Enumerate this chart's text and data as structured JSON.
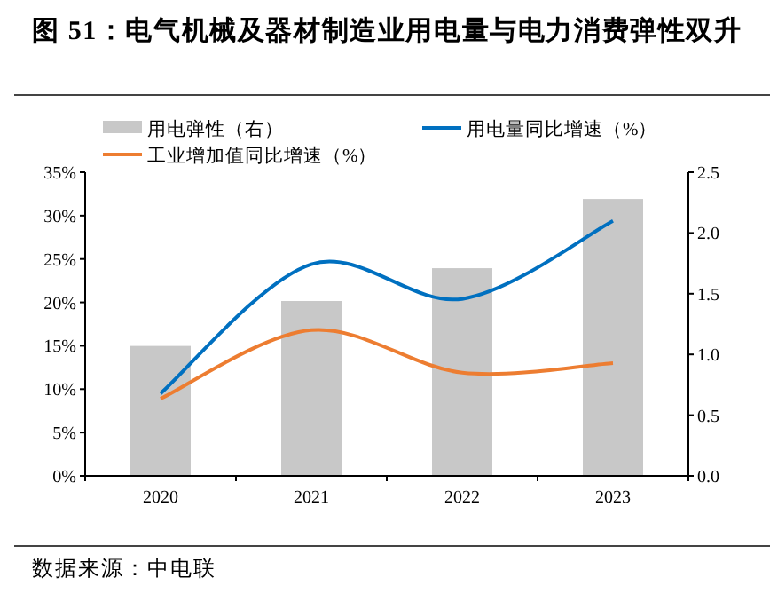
{
  "chart_data": {
    "type": "line",
    "title": "图 51：电气机械及器材制造业用电量与电力消费弹性双升",
    "categories": [
      "2020",
      "2021",
      "2022",
      "2023"
    ],
    "series": [
      {
        "name": "用电弹性（右）",
        "type": "bar",
        "axis": "y2",
        "color": "#c8c8c8",
        "values": [
          1.07,
          1.44,
          1.71,
          2.28
        ]
      },
      {
        "name": "用电量同比增速（%）",
        "color": "#0070c0",
        "values": [
          9.5,
          24.4,
          20.4,
          29.4
        ]
      },
      {
        "name": "工业增加值同比增速（%）",
        "color": "#ed7d31",
        "values": [
          8.9,
          16.8,
          11.9,
          13.0
        ]
      }
    ],
    "ylim": [
      0,
      35
    ],
    "yticks": [
      {
        "value": 0,
        "label": "0%"
      },
      {
        "value": 5,
        "label": "5%"
      },
      {
        "value": 10,
        "label": "10%"
      },
      {
        "value": 15,
        "label": "15%"
      },
      {
        "value": 20,
        "label": "20%"
      },
      {
        "value": 25,
        "label": "25%"
      },
      {
        "value": 30,
        "label": "30%"
      },
      {
        "value": 35,
        "label": "35%"
      }
    ],
    "y2lim": [
      0,
      2.5
    ],
    "y2ticks": [
      {
        "value": 0,
        "label": "0.0"
      },
      {
        "value": 0.5,
        "label": "0.5"
      },
      {
        "value": 1,
        "label": "1.0"
      },
      {
        "value": 1.5,
        "label": "1.5"
      },
      {
        "value": 2,
        "label": "2.0"
      },
      {
        "value": 2.5,
        "label": "2.5"
      }
    ],
    "legend": "top",
    "grid": false,
    "annotations": [
      "数据来源：中电联"
    ]
  }
}
